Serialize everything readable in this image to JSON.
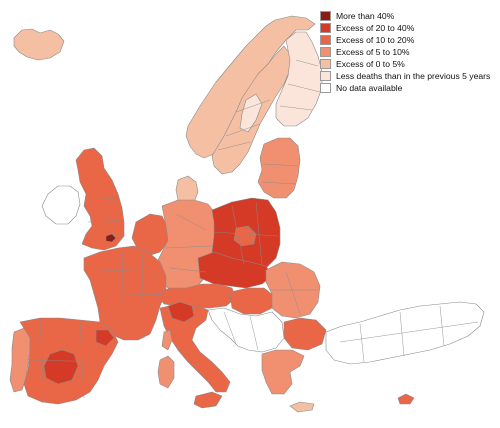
{
  "legend": {
    "items": [
      {
        "label": "More than 40%",
        "color": "#8a1c16"
      },
      {
        "label": "Excess of 20 to 40%",
        "color": "#d53a26"
      },
      {
        "label": "Excess of 10 to 20%",
        "color": "#e96646"
      },
      {
        "label": "Excess of 5 to 10%",
        "color": "#f09070"
      },
      {
        "label": "Excess of 0 to 5%",
        "color": "#f5bfa4"
      },
      {
        "label": "Less deaths than in the previous 5 years",
        "color": "#fbe5da"
      },
      {
        "label": "No data available",
        "color": "#ffffff"
      }
    ]
  },
  "map": {
    "regions": [
      {
        "name": "iceland",
        "class": 4
      },
      {
        "name": "norway",
        "class": 4
      },
      {
        "name": "sweden",
        "class": 4
      },
      {
        "name": "finland",
        "class": 5
      },
      {
        "name": "estonia-latvia-lithuania",
        "class": 3
      },
      {
        "name": "ireland",
        "class": 6
      },
      {
        "name": "great-britain",
        "class": 2
      },
      {
        "name": "denmark",
        "class": 4
      },
      {
        "name": "benelux",
        "class": 2
      },
      {
        "name": "germany",
        "class": 3
      },
      {
        "name": "poland",
        "class": 1
      },
      {
        "name": "czechia-slovakia",
        "class": 1
      },
      {
        "name": "france",
        "class": 2
      },
      {
        "name": "switzerland-austria",
        "class": 2
      },
      {
        "name": "hungary",
        "class": 2
      },
      {
        "name": "romania",
        "class": 3
      },
      {
        "name": "bulgaria",
        "class": 2
      },
      {
        "name": "italy",
        "class": 2
      },
      {
        "name": "sardinia",
        "class": 3
      },
      {
        "name": "corsica",
        "class": 3
      },
      {
        "name": "sicily",
        "class": 2
      },
      {
        "name": "portugal",
        "class": 3
      },
      {
        "name": "spain",
        "class": 2
      },
      {
        "name": "balkans",
        "class": 6
      },
      {
        "name": "greece",
        "class": 3
      },
      {
        "name": "crete",
        "class": 4
      },
      {
        "name": "cyprus",
        "class": 2
      },
      {
        "name": "turkey",
        "class": 6
      },
      {
        "name": "hotspot-london",
        "class": 0
      },
      {
        "name": "hotspot-lombardy",
        "class": 1
      },
      {
        "name": "hotspot-madrid",
        "class": 1
      },
      {
        "name": "hotspot-catalonia",
        "class": 1
      },
      {
        "name": "hotspot-warsaw",
        "class": 2
      },
      {
        "name": "hotspot-north-sweden",
        "class": 5
      }
    ]
  }
}
